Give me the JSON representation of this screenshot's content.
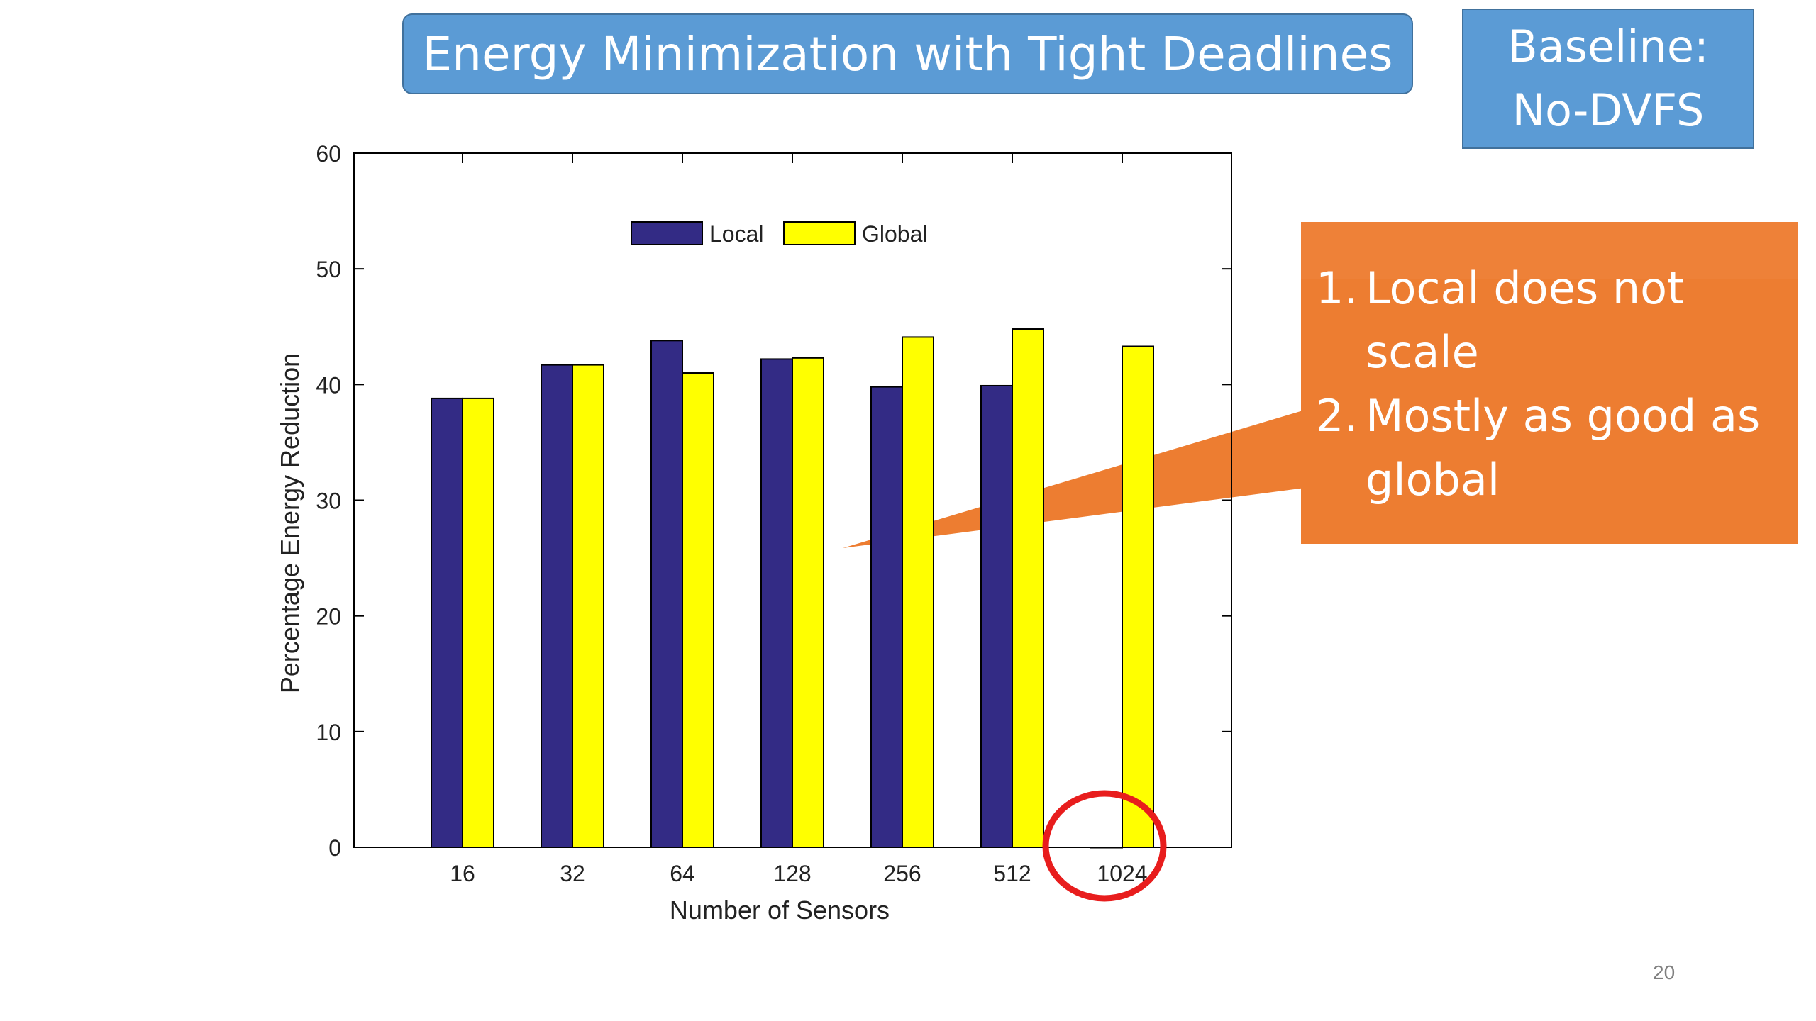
{
  "slide": {
    "title": "Energy Minimization with Tight Deadlines",
    "baseline_line1": "Baseline:",
    "baseline_line2": "No-DVFS",
    "callout_items": [
      {
        "num": "1.",
        "text": "Local does not scale"
      },
      {
        "num": "2.",
        "text": "Mostly as good as global"
      }
    ],
    "page_number": "20"
  },
  "colors": {
    "title_bg": "#5b9bd5",
    "callout_bg": "#ed7d31",
    "local": "#332b85",
    "global": "#ffff00",
    "highlight_circle": "#e81d1d"
  },
  "chart_data": {
    "type": "bar",
    "xlabel": "Number of Sensors",
    "ylabel": "Percentage Energy Reduction",
    "categories": [
      "16",
      "32",
      "64",
      "128",
      "256",
      "512",
      "1024"
    ],
    "series": [
      {
        "name": "Local",
        "values": [
          38.8,
          41.7,
          43.8,
          42.2,
          39.8,
          39.9,
          0
        ]
      },
      {
        "name": "Global",
        "values": [
          38.8,
          41.7,
          41.0,
          42.3,
          44.1,
          44.8,
          43.3
        ]
      }
    ],
    "ylim": [
      0,
      60
    ],
    "yticks": [
      "0",
      "10",
      "20",
      "30",
      "40",
      "50",
      "60"
    ],
    "legend_position": "top-center",
    "grid": false,
    "annotation": "red circle around 1024"
  }
}
